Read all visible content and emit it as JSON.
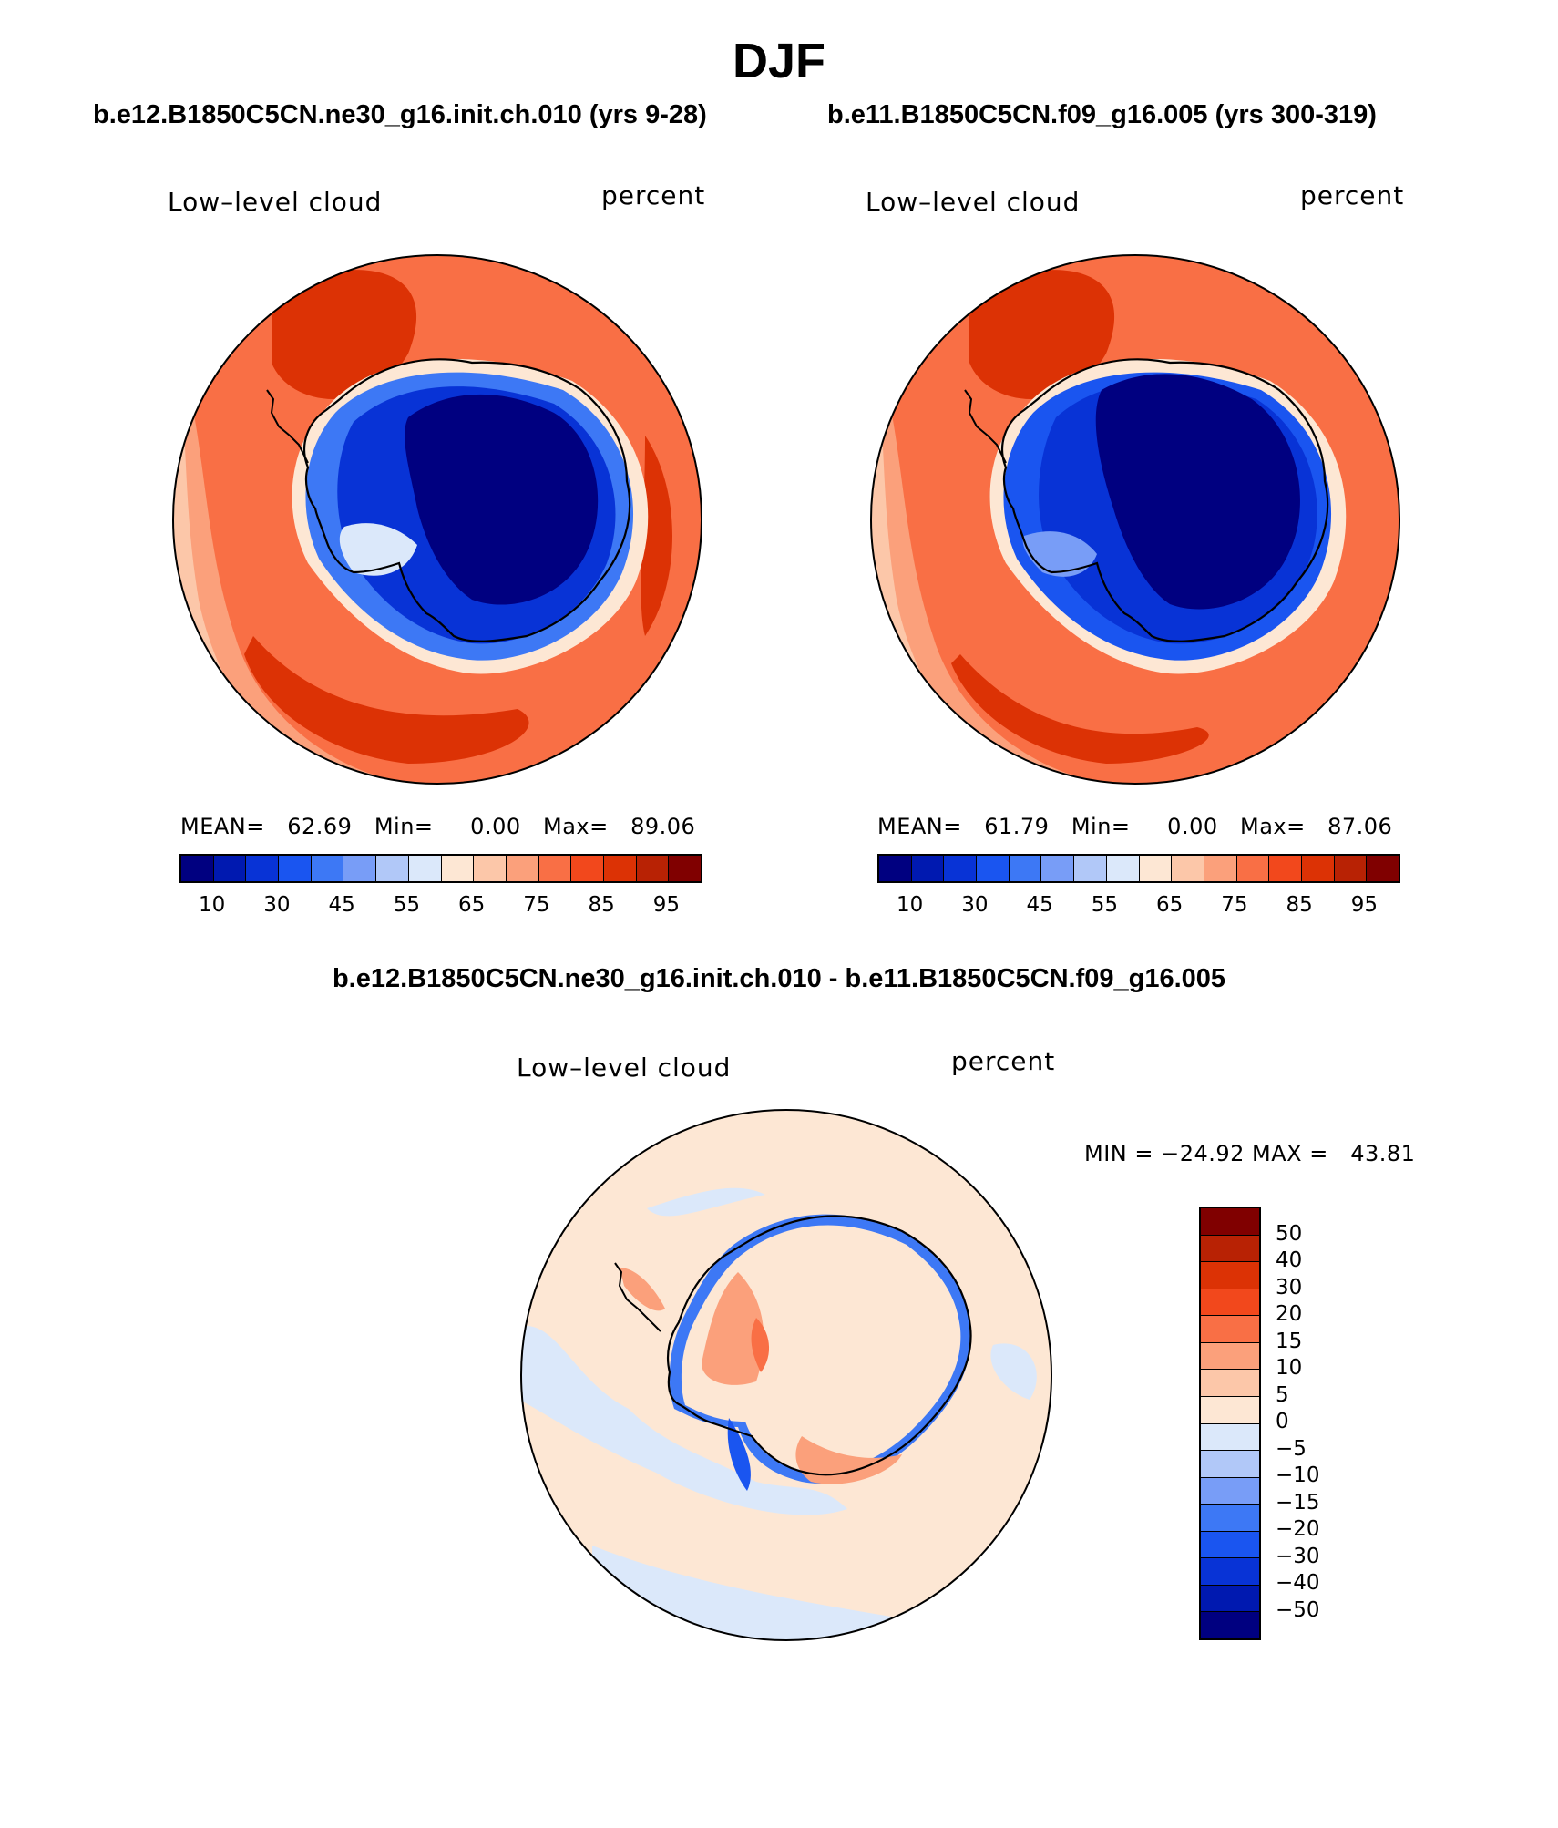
{
  "title": "DJF",
  "panels": [
    {
      "case": "b.e12.B1850C5CN.ne30_g16.init.ch.010 (yrs 9-28)",
      "variable": "Low–level cloud",
      "units": "percent",
      "stats": "MEAN=   62.69   Min=     0.00   Max=   89.06",
      "mean": 62.69,
      "min": 0.0,
      "max": 89.06
    },
    {
      "case": "b.e11.B1850C5CN.f09_g16.005 (yrs 300-319)",
      "variable": "Low–level cloud",
      "units": "percent",
      "stats": "MEAN=   61.79   Min=     0.00   Max=   87.06",
      "mean": 61.79,
      "min": 0.0,
      "max": 87.06
    }
  ],
  "colorbar": {
    "tick_labels": [
      "10",
      "30",
      "45",
      "55",
      "65",
      "75",
      "85",
      "95"
    ],
    "colors": [
      "#000080",
      "#0019b0",
      "#0833d6",
      "#1a55f0",
      "#3d78f5",
      "#789df7",
      "#b1c8f8",
      "#dbe8fa",
      "#fde7d4",
      "#fcc7a9",
      "#fba07b",
      "#f96f45",
      "#f2481c",
      "#dc3205",
      "#b82204",
      "#800000"
    ]
  },
  "difference": {
    "title": "b.e12.B1850C5CN.ne30_g16.init.ch.010 - b.e11.B1850C5CN.f09_g16.005",
    "variable": "Low–level cloud",
    "units": "percent",
    "stats": "MIN = −24.92 MAX =   43.81",
    "min": -24.92,
    "max": 43.81,
    "colorbar_labels": [
      "50",
      "40",
      "30",
      "20",
      "15",
      "10",
      "5",
      "0",
      "−5",
      "−10",
      "−15",
      "−20",
      "−30",
      "−40",
      "−50"
    ],
    "colorbar_colors": [
      "#800000",
      "#b82204",
      "#dc3205",
      "#f2481c",
      "#f96f45",
      "#fba07b",
      "#fcc7a9",
      "#fde7d4",
      "#dbe8fa",
      "#b1c8f8",
      "#789df7",
      "#3d78f5",
      "#1a55f0",
      "#0833d6",
      "#0019b0",
      "#000080"
    ]
  }
}
